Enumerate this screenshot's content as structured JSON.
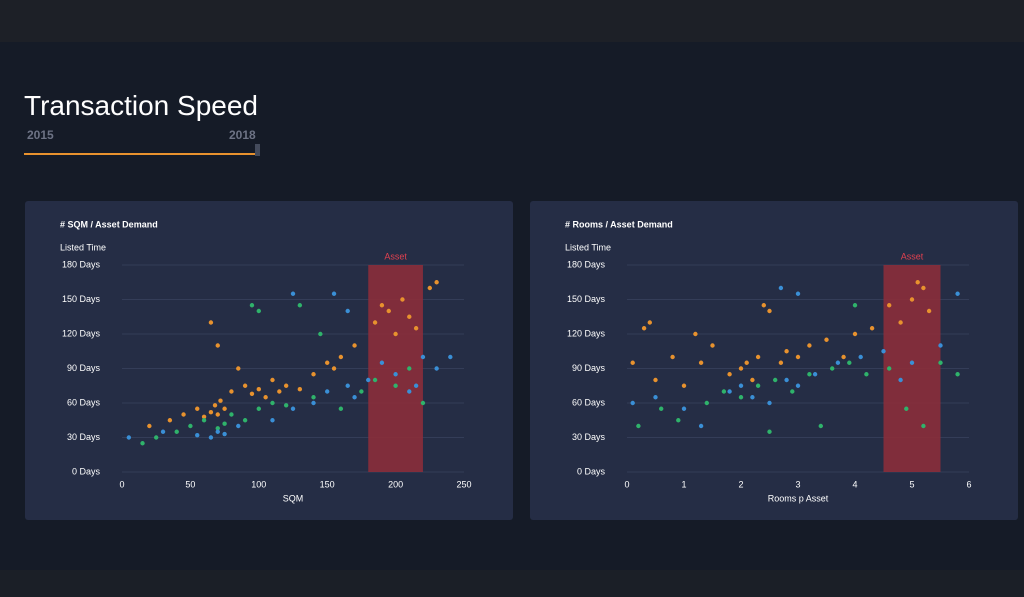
{
  "header": {
    "title": "Transaction Speed",
    "slider_start": "2015",
    "slider_end": "2018"
  },
  "chart_data": [
    {
      "type": "scatter",
      "title": "# SQM / Asset Demand",
      "y_label": "Listed Time",
      "x_label": "SQM",
      "xlim": [
        0,
        250
      ],
      "xticks": [
        0,
        50,
        100,
        150,
        200,
        250
      ],
      "ylim": [
        0,
        180
      ],
      "yticks": [
        {
          "value": 0,
          "label": "0 Days"
        },
        {
          "value": 30,
          "label": "30 Days"
        },
        {
          "value": 60,
          "label": "60 Days"
        },
        {
          "value": 90,
          "label": "90 Days"
        },
        {
          "value": 120,
          "label": "120 Days"
        },
        {
          "value": 150,
          "label": "150 Days"
        },
        {
          "value": 180,
          "label": "180 Days"
        }
      ],
      "grid": true,
      "highlight": {
        "label": "Asset",
        "range": [
          180,
          220
        ],
        "color": "#8b2d3a"
      },
      "series": [
        {
          "color": "#e8922e",
          "x": [
            20,
            35,
            45,
            55,
            60,
            65,
            68,
            70,
            72,
            75,
            80,
            90,
            95,
            100,
            105,
            110,
            115,
            120,
            130,
            140,
            150,
            155,
            160,
            170,
            185,
            190,
            195,
            200,
            205,
            210,
            215,
            225,
            230,
            65,
            70,
            85
          ],
          "values": [
            40,
            45,
            50,
            55,
            48,
            52,
            58,
            50,
            62,
            55,
            70,
            75,
            68,
            72,
            65,
            80,
            70,
            75,
            72,
            85,
            95,
            90,
            100,
            110,
            130,
            145,
            140,
            120,
            150,
            135,
            125,
            160,
            165,
            130,
            110,
            90
          ]
        },
        {
          "color": "#2fb36b",
          "x": [
            15,
            25,
            40,
            50,
            60,
            70,
            75,
            80,
            90,
            100,
            110,
            120,
            140,
            160,
            175,
            185,
            200,
            210,
            220,
            95,
            100,
            130,
            145
          ],
          "values": [
            25,
            30,
            35,
            40,
            45,
            38,
            42,
            50,
            45,
            55,
            60,
            58,
            65,
            55,
            70,
            80,
            75,
            90,
            60,
            145,
            140,
            145,
            120
          ]
        },
        {
          "color": "#3a8fd6",
          "x": [
            5,
            30,
            55,
            65,
            70,
            75,
            85,
            110,
            125,
            140,
            150,
            165,
            170,
            180,
            190,
            200,
            210,
            215,
            220,
            230,
            240,
            125,
            155,
            165
          ],
          "values": [
            30,
            35,
            32,
            30,
            35,
            33,
            40,
            45,
            55,
            60,
            70,
            75,
            65,
            80,
            95,
            85,
            70,
            75,
            100,
            90,
            100,
            155,
            155,
            140
          ]
        }
      ]
    },
    {
      "type": "scatter",
      "title": "# Rooms / Asset Demand",
      "y_label": "Listed Time",
      "x_label": "Rooms p Asset",
      "xlim": [
        0,
        6
      ],
      "xticks": [
        0,
        1,
        2,
        3,
        4,
        5,
        6
      ],
      "ylim": [
        0,
        180
      ],
      "yticks": [
        {
          "value": 0,
          "label": "0 Days"
        },
        {
          "value": 30,
          "label": "30 Days"
        },
        {
          "value": 60,
          "label": "60 Days"
        },
        {
          "value": 90,
          "label": "90 Days"
        },
        {
          "value": 120,
          "label": "120 Days"
        },
        {
          "value": 150,
          "label": "150 Days"
        },
        {
          "value": 180,
          "label": "180 Days"
        }
      ],
      "grid": true,
      "highlight": {
        "label": "Asset",
        "range": [
          4.5,
          5.5
        ],
        "color": "#8b2d3a"
      },
      "series": [
        {
          "color": "#e8922e",
          "x": [
            0.1,
            0.3,
            0.5,
            0.8,
            1.0,
            1.3,
            1.5,
            1.8,
            2.0,
            2.1,
            2.2,
            2.3,
            2.5,
            2.7,
            2.8,
            3.0,
            3.2,
            3.5,
            3.8,
            4.0,
            4.3,
            4.6,
            4.8,
            5.0,
            5.1,
            5.2,
            5.3,
            0.4,
            1.2,
            2.4
          ],
          "values": [
            95,
            125,
            80,
            100,
            75,
            95,
            110,
            85,
            90,
            95,
            80,
            100,
            140,
            95,
            105,
            100,
            110,
            115,
            100,
            120,
            125,
            145,
            130,
            150,
            165,
            160,
            140,
            130,
            120,
            145
          ]
        },
        {
          "color": "#2fb36b",
          "x": [
            0.2,
            0.6,
            0.9,
            1.4,
            1.7,
            2.0,
            2.3,
            2.6,
            2.9,
            3.2,
            3.6,
            3.9,
            4.2,
            4.6,
            4.9,
            5.2,
            5.5,
            5.8,
            2.5,
            3.4,
            4.0
          ],
          "values": [
            40,
            55,
            45,
            60,
            70,
            65,
            75,
            80,
            70,
            85,
            90,
            95,
            85,
            90,
            55,
            40,
            95,
            85,
            35,
            40,
            145
          ]
        },
        {
          "color": "#3a8fd6",
          "x": [
            0.1,
            0.5,
            1.0,
            1.3,
            1.8,
            2.0,
            2.2,
            2.5,
            2.8,
            3.0,
            3.3,
            3.7,
            4.1,
            4.5,
            4.8,
            5.0,
            5.5,
            5.8,
            2.7,
            3.0
          ],
          "values": [
            60,
            65,
            55,
            40,
            70,
            75,
            65,
            60,
            80,
            75,
            85,
            95,
            100,
            105,
            80,
            95,
            110,
            155,
            160,
            155
          ]
        }
      ]
    }
  ]
}
